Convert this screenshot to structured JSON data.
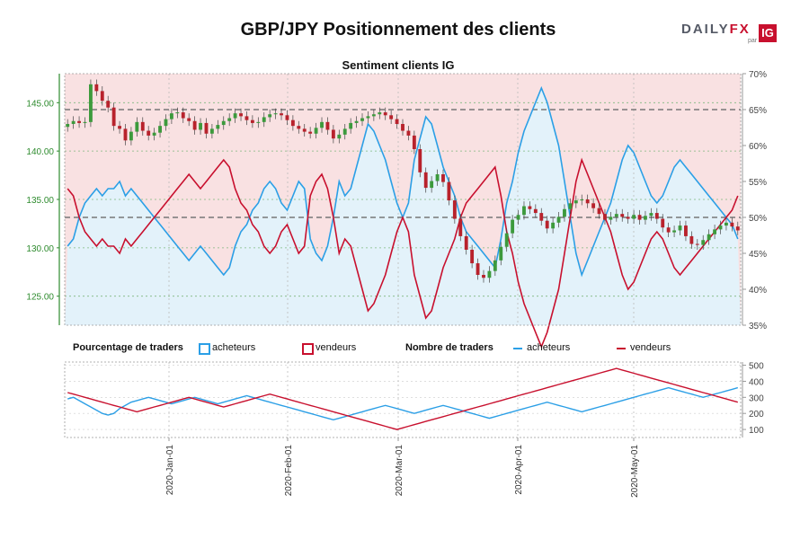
{
  "title": "GBP/JPY Positionnement des clients",
  "logo": {
    "daily": "DAILY",
    "fx": "FX",
    "par": "par",
    "ig": "IG"
  },
  "subtitle": "Sentiment clients IG",
  "legend": {
    "pct_title": "Pourcentage de traders",
    "pct_buyers": "acheteurs",
    "pct_sellers": "vendeurs",
    "count_title": "Nombre de traders",
    "count_buyers": "acheteurs",
    "count_sellers": "vendeurs"
  },
  "colors": {
    "buyers": "#2b9fe6",
    "sellers": "#c8102e",
    "buyers_fill": "#e3f2fa",
    "sellers_fill": "#f9e1e2",
    "bull": "#3c9a3c",
    "bear": "#b8222c",
    "grid": "#7fb87f"
  },
  "chart_data": [
    {
      "type": "candlestick",
      "title": "Sentiment clients IG",
      "ylabel_left": "GBP/JPY",
      "left_ticks": [
        "125.00",
        "130.00",
        "135.00",
        "140.00",
        "145.00"
      ],
      "ylim_left": [
        122,
        148
      ],
      "right_ticks": [
        "35%",
        "40%",
        "45%",
        "50%",
        "55%",
        "60%",
        "65%",
        "70%"
      ],
      "ylim_right": [
        35,
        70
      ],
      "reference_lines_pct": [
        50,
        65
      ],
      "price_close": [
        142.8,
        143.1,
        142.9,
        143.0,
        146.9,
        146.2,
        145.2,
        144.5,
        142.6,
        142.3,
        141.1,
        142.0,
        143.0,
        142.1,
        141.6,
        141.9,
        142.6,
        143.3,
        143.9,
        144.0,
        143.4,
        143.1,
        142.2,
        142.9,
        141.8,
        142.3,
        142.7,
        143.1,
        143.4,
        143.9,
        143.6,
        143.2,
        142.9,
        143.0,
        143.5,
        143.8,
        143.9,
        143.7,
        143.2,
        142.6,
        142.3,
        142.0,
        141.8,
        142.4,
        143.0,
        142.2,
        141.3,
        141.7,
        142.3,
        142.9,
        143.1,
        143.4,
        143.6,
        143.8,
        144.0,
        143.7,
        143.3,
        142.8,
        142.1,
        141.6,
        140.2,
        137.8,
        136.2,
        136.9,
        137.6,
        136.8,
        134.9,
        133.0,
        131.2,
        129.8,
        128.4,
        127.2,
        126.9,
        127.6,
        128.7,
        130.1,
        131.5,
        132.9,
        133.4,
        134.3,
        134.0,
        133.6,
        132.8,
        132.0,
        132.6,
        133.2,
        134.0,
        134.6,
        134.9,
        135.0,
        134.6,
        134.1,
        133.5,
        132.9,
        133.2,
        133.5,
        133.2,
        133.0,
        133.4,
        132.9,
        133.3,
        133.6,
        133.0,
        132.1,
        131.6,
        131.8,
        132.3,
        131.2,
        130.4,
        130.3,
        130.8,
        131.4,
        131.9,
        132.3,
        132.6,
        132.2,
        131.8
      ],
      "price_range": [
        123.5,
        147.8
      ],
      "buyers_pct": [
        46,
        47,
        50,
        52,
        53,
        54,
        53,
        54,
        54,
        55,
        53,
        54,
        53,
        52,
        51,
        50,
        49,
        48,
        47,
        46,
        45,
        44,
        45,
        46,
        45,
        44,
        43,
        42,
        43,
        46,
        48,
        49,
        51,
        52,
        54,
        55,
        54,
        52,
        51,
        53,
        55,
        54,
        47,
        45,
        44,
        46,
        50,
        55,
        53,
        54,
        57,
        60,
        63,
        62,
        60,
        58,
        55,
        52,
        50,
        52,
        58,
        61,
        64,
        63,
        60,
        57,
        55,
        53,
        50,
        48,
        47,
        46,
        45,
        44,
        43,
        47,
        52,
        55,
        59,
        62,
        64,
        66,
        68,
        66,
        63,
        60,
        55,
        50,
        45,
        42,
        44,
        46,
        48,
        50,
        52,
        55,
        58,
        60,
        59,
        57,
        55,
        53,
        52,
        53,
        55,
        57,
        58,
        57,
        56,
        55,
        54,
        53,
        52,
        51,
        50,
        49,
        47
      ],
      "sellers_pct": [
        54,
        53,
        50,
        48,
        47,
        46,
        47,
        46,
        46,
        45,
        47,
        46,
        47,
        48,
        49,
        50,
        51,
        52,
        53,
        54,
        55,
        56,
        55,
        54,
        55,
        56,
        57,
        58,
        57,
        54,
        52,
        51,
        49,
        48,
        46,
        45,
        46,
        48,
        49,
        47,
        45,
        46,
        53,
        55,
        56,
        54,
        50,
        45,
        47,
        46,
        43,
        40,
        37,
        38,
        40,
        42,
        45,
        48,
        50,
        48,
        42,
        39,
        36,
        37,
        40,
        43,
        45,
        47,
        50,
        52,
        53,
        54,
        55,
        56,
        57,
        53,
        48,
        45,
        41,
        38,
        36,
        34,
        32,
        34,
        37,
        40,
        45,
        50,
        55,
        58,
        56,
        54,
        52,
        50,
        48,
        45,
        42,
        40,
        41,
        43,
        45,
        47,
        48,
        47,
        45,
        43,
        42,
        43,
        44,
        45,
        46,
        47,
        48,
        49,
        50,
        51,
        53
      ]
    },
    {
      "type": "line",
      "title": "Nombre de traders",
      "right_ticks": [
        "100",
        "200",
        "300",
        "400",
        "500"
      ],
      "ylim": [
        50,
        520
      ],
      "series": [
        {
          "name": "acheteurs",
          "values": [
            290,
            300,
            280,
            260,
            240,
            220,
            200,
            190,
            200,
            230,
            250,
            270,
            280,
            290,
            300,
            290,
            280,
            270,
            260,
            270,
            280,
            290,
            300,
            290,
            280,
            270,
            260,
            270,
            280,
            290,
            300,
            310,
            300,
            290,
            280,
            270,
            260,
            250,
            240,
            230,
            220,
            210,
            200,
            190,
            180,
            170,
            160,
            170,
            180,
            190,
            200,
            210,
            220,
            230,
            240,
            250,
            240,
            230,
            220,
            210,
            200,
            210,
            220,
            230,
            240,
            250,
            240,
            230,
            220,
            210,
            200,
            190,
            180,
            170,
            180,
            190,
            200,
            210,
            220,
            230,
            240,
            250,
            260,
            270,
            260,
            250,
            240,
            230,
            220,
            210,
            220,
            230,
            240,
            250,
            260,
            270,
            280,
            290,
            300,
            310,
            320,
            330,
            340,
            350,
            360,
            350,
            340,
            330,
            320,
            310,
            300,
            310,
            320,
            330,
            340,
            350,
            360
          ]
        },
        {
          "name": "vendeurs",
          "values": [
            330,
            320,
            310,
            300,
            290,
            280,
            270,
            260,
            250,
            240,
            230,
            220,
            210,
            220,
            230,
            240,
            250,
            260,
            270,
            280,
            290,
            300,
            290,
            280,
            270,
            260,
            250,
            240,
            250,
            260,
            270,
            280,
            290,
            300,
            310,
            320,
            310,
            300,
            290,
            280,
            270,
            260,
            250,
            240,
            230,
            220,
            210,
            200,
            190,
            180,
            170,
            160,
            150,
            140,
            130,
            120,
            110,
            100,
            110,
            120,
            130,
            140,
            150,
            160,
            170,
            180,
            190,
            200,
            210,
            220,
            230,
            240,
            250,
            260,
            270,
            280,
            290,
            300,
            310,
            320,
            330,
            340,
            350,
            360,
            370,
            380,
            390,
            400,
            410,
            420,
            430,
            440,
            450,
            460,
            470,
            480,
            470,
            460,
            450,
            440,
            430,
            420,
            410,
            400,
            390,
            380,
            370,
            360,
            350,
            340,
            330,
            320,
            310,
            300,
            290,
            280,
            270
          ]
        }
      ],
      "x_ticks": [
        "2020-Jan-01",
        "2020-Feb-01",
        "2020-Mar-01",
        "2020-Apr-01",
        "2020-May-01"
      ]
    }
  ]
}
